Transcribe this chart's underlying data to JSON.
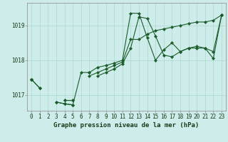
{
  "xlabel": "Graphe pression niveau de la mer (hPa)",
  "background_color": "#ceecea",
  "grid_color": "#a8d8d0",
  "line_color": "#1a5c2a",
  "series1": [
    1017.45,
    1017.2,
    null,
    null,
    1016.85,
    1016.85,
    null,
    null,
    1017.55,
    1017.65,
    1017.75,
    1017.9,
    1018.35,
    1019.25,
    1019.2,
    1018.7,
    1018.15,
    1018.1,
    1018.25,
    1018.35,
    1018.4,
    1018.35,
    1018.25,
    1019.3
  ],
  "series2": [
    1017.45,
    1017.2,
    null,
    null,
    1016.85,
    1016.85,
    null,
    1017.55,
    1017.65,
    1017.75,
    1017.85,
    1017.95,
    1018.6,
    1018.6,
    1018.75,
    1018.85,
    1018.9,
    1018.95,
    1019.0,
    1019.05,
    1019.1,
    1019.1,
    1019.15,
    1019.3
  ],
  "series3": [
    1017.45,
    null,
    null,
    1016.8,
    1016.75,
    1016.72,
    1017.65,
    1017.65,
    null,
    null,
    null,
    null,
    null,
    null,
    null,
    null,
    null,
    null,
    null,
    null,
    null,
    null,
    null,
    null
  ],
  "series4": [
    1017.45,
    null,
    null,
    1016.8,
    1016.75,
    1016.72,
    null,
    1017.65,
    1017.8,
    1017.85,
    1017.92,
    1018.0,
    1019.35,
    1019.35,
    1018.65,
    1018.0,
    1018.3,
    1018.5,
    1018.25,
    1018.35,
    1018.35,
    1018.35,
    1018.05,
    1019.3
  ],
  "ylim": [
    1016.55,
    1019.65
  ],
  "yticks": [
    1017.0,
    1018.0,
    1019.0
  ],
  "xlim": [
    -0.5,
    23.5
  ],
  "tick_fontsize": 5.5,
  "xlabel_fontsize": 6.5
}
